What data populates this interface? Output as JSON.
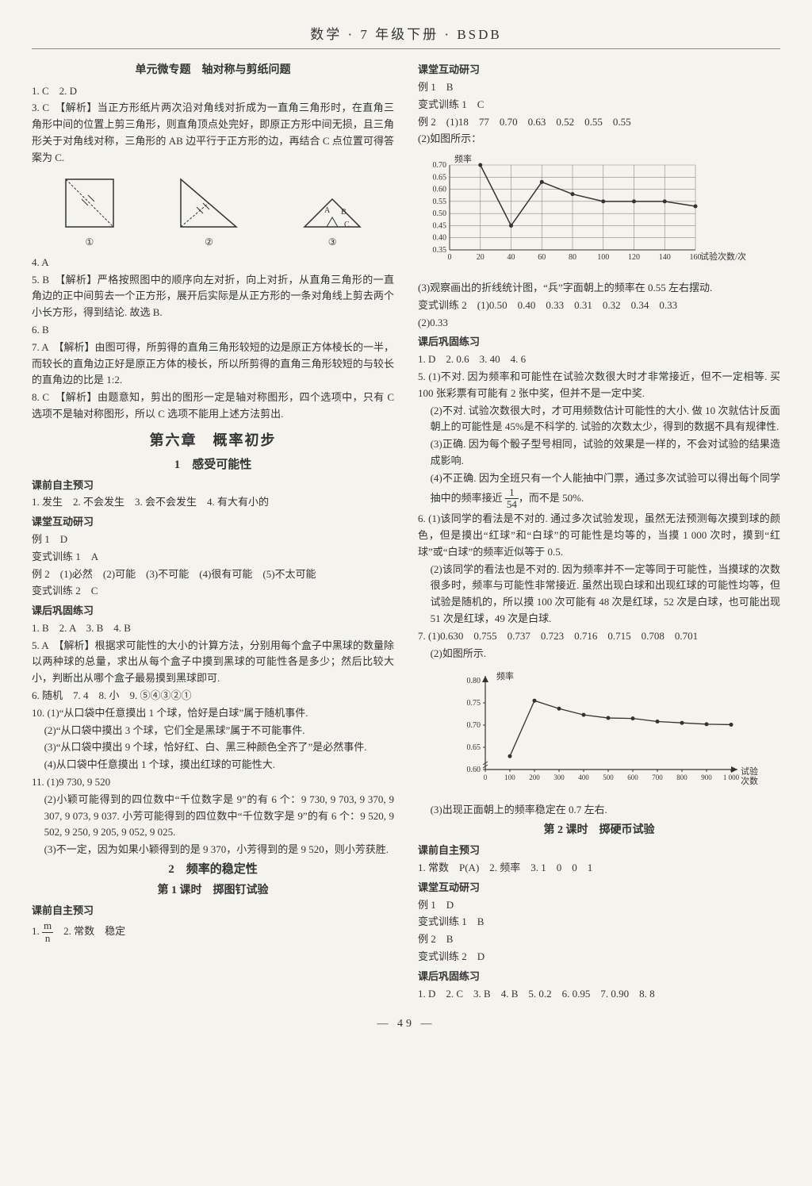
{
  "header": "数学 · 7 年级下册 · BSDB",
  "page_number": "— 49 —",
  "left": {
    "t1": "单元微专题　轴对称与剪纸问题",
    "l1": "1. C　2. D",
    "l2": "3. C　【解析】当正方形纸片两次沿对角线对折成为一直角三角形时，在直角三角形中间的位置上剪三角形，则直角顶点处完好，即原正方形中间无损，且三角形关于对角线对称，三角形的 AB 边平行于正方形的边，再结合 C 点位置可得答案为 C.",
    "d1": "①",
    "d2": "②",
    "d3": "③",
    "l3": "4. A",
    "l4": "5. B　【解析】严格按照图中的顺序向左对折，向上对折，从直角三角形的一直角边的正中间剪去一个正方形，展开后实际是从正方形的一条对角线上剪去两个小长方形，得到结论. 故选 B.",
    "l5": "6. B",
    "l6": "7. A　【解析】由图可得，所剪得的直角三角形较短的边是原正方体棱长的一半，而较长的直角边正好是原正方体的棱长，所以所剪得的直角三角形较短的与较长的直角边的比是 1:2.",
    "l7": "8. C　【解析】由题意知，剪出的图形一定是轴对称图形，四个选项中，只有 C 选项不是轴对称图形，所以 C 选项不能用上述方法剪出.",
    "chap": "第六章　概率初步",
    "sec1": "1　感受可能性",
    "h1": "课前自主预习",
    "l8": "1. 发生　2. 不会发生　3. 会不会发生　4. 有大有小的",
    "h2": "课堂互动研习",
    "l9": "例 1　D",
    "l10": "变式训练 1　A",
    "l11": "例 2　(1)必然　(2)可能　(3)不可能　(4)很有可能　(5)不太可能",
    "l12": "变式训练 2　C",
    "h3": "课后巩固练习",
    "l13": "1. B　2. A　3. B　4. B",
    "l14": "5. A　【解析】根据求可能性的大小的计算方法，分别用每个盒子中黑球的数量除以两种球的总量，求出从每个盒子中摸到黑球的可能性各是多少；然后比较大小，判断出从哪个盒子最易摸到黑球即可.",
    "l15": "6. 随机　7. 4　8. 小　9. ⑤④③②①",
    "l16": "10. (1)“从口袋中任意摸出 1 个球，恰好是白球”属于随机事件.",
    "l17": "(2)“从口袋中摸出 3 个球，它们全是黑球”属于不可能事件.",
    "l18": "(3)“从口袋中摸出 9 个球，恰好红、白、黑三种颜色全齐了”是必然事件.",
    "l19": "(4)从口袋中任意摸出 1 个球，摸出红球的可能性大.",
    "l20": "11. (1)9 730, 9 520",
    "l21": "(2)小颖可能得到的四位数中“千位数字是 9”的有 6 个：9 730, 9 703, 9 370, 9 307, 9 073, 9 037. 小芳可能得到的四位数中“千位数字是 9”的有 6 个：9 520, 9 502, 9 250, 9 205, 9 052, 9 025.",
    "l22": "(3)不一定，因为如果小颖得到的是 9 370，小芳得到的是 9 520，则小芳获胜.",
    "sec2": "2　频率的稳定性",
    "sub2": "第 1 课时　掷图钉试验",
    "h4": "课前自主预习",
    "l23a": "1. ",
    "l23frac_n": "m",
    "l23frac_d": "n",
    "l23b": "　2. 常数　稳定"
  },
  "right": {
    "h1": "课堂互动研习",
    "r1": "例 1　B",
    "r2": "变式训练 1　C",
    "r3": "例 2　(1)18　77　0.70　0.63　0.52　0.55　0.55",
    "r4": "(2)如图所示：",
    "chart1": {
      "ylabel": "频率",
      "xlabel": "试验次数/次",
      "yticks": [
        "0.35",
        "0.40",
        "0.45",
        "0.50",
        "0.55",
        "0.60",
        "0.65",
        "0.70"
      ],
      "xticks": [
        "0",
        "20",
        "40",
        "60",
        "80",
        "100",
        "120",
        "140",
        "160"
      ],
      "points_y": [
        0.7,
        0.45,
        0.63,
        0.58,
        0.55,
        0.55,
        0.55,
        0.53
      ],
      "line_color": "#333",
      "grid_color": "#888",
      "bg": "#f5f3ee"
    },
    "r5": "(3)观察画出的折线统计图，“兵”字面朝上的频率在 0.55 左右摆动.",
    "r6": "变式训练 2　(1)0.50　0.40　0.33　0.31　0.32　0.34　0.33",
    "r7": "(2)0.33",
    "h2": "课后巩固练习",
    "r8": "1. D　2. 0.6　3. 40　4. 6",
    "r9": "5. (1)不对. 因为频率和可能性在试验次数很大时才非常接近，但不一定相等. 买 100 张彩票有可能有 2 张中奖，但并不是一定中奖.",
    "r10": "(2)不对. 试验次数很大时，才可用频数估计可能性的大小. 做 10 次就估计反面朝上的可能性是 45%是不科学的. 试验的次数太少，得到的数据不具有规律性.",
    "r11": "(3)正确. 因为每个骰子型号相同，试验的效果是一样的，不会对试验的结果造成影响.",
    "r12a": "(4)不正确. 因为全班只有一个人能抽中门票，通过多次试验可以得出每个同学抽中的频率接近 ",
    "r12fn": "1",
    "r12fd": "54",
    "r12b": "，而不是 50%.",
    "r13": "6. (1)该同学的看法是不对的. 通过多次试验发现，虽然无法预测每次摸到球的颜色，但是摸出“红球”和“白球”的可能性是均等的，当摸 1 000 次时，摸到“红球”或“白球”的频率近似等于 0.5.",
    "r14": "(2)该同学的看法也是不对的. 因为频率并不一定等同于可能性，当摸球的次数很多时，频率与可能性非常接近. 虽然出现白球和出现红球的可能性均等，但试验是随机的，所以摸 100 次可能有 48 次是红球，52 次是白球，也可能出现 51 次是红球，49 次是白球.",
    "r15": "7. (1)0.630　0.755　0.737　0.723　0.716　0.715　0.708　0.701",
    "r16": "(2)如图所示.",
    "chart2": {
      "ylabel": "频率",
      "xlabel_a": "试验",
      "xlabel_b": "次数",
      "yticks": [
        "0.60",
        "0.65",
        "0.70",
        "0.75",
        "0.80"
      ],
      "xticks": [
        "0",
        "100",
        "200",
        "300",
        "400",
        "500",
        "600",
        "700",
        "800",
        "900",
        "1 000"
      ],
      "points_y": [
        0.63,
        0.755,
        0.737,
        0.723,
        0.716,
        0.715,
        0.708,
        0.705,
        0.702,
        0.701
      ],
      "line_color": "#333",
      "point_fill": "#333"
    },
    "r17": "(3)出现正面朝上的频率稳定在 0.7 左右.",
    "sub1": "第 2 课时　掷硬币试验",
    "h3": "课前自主预习",
    "r18": "1. 常数　P(A)　2. 频率　3. 1　0　0　1",
    "h4": "课堂互动研习",
    "r19": "例 1　D",
    "r20": "变式训练 1　B",
    "r21": "例 2　B",
    "r22": "变式训练 2　D",
    "h5": "课后巩固练习",
    "r23": "1. D　2. C　3. B　4. B　5. 0.2　6. 0.95　7. 0.90　8. 8"
  }
}
